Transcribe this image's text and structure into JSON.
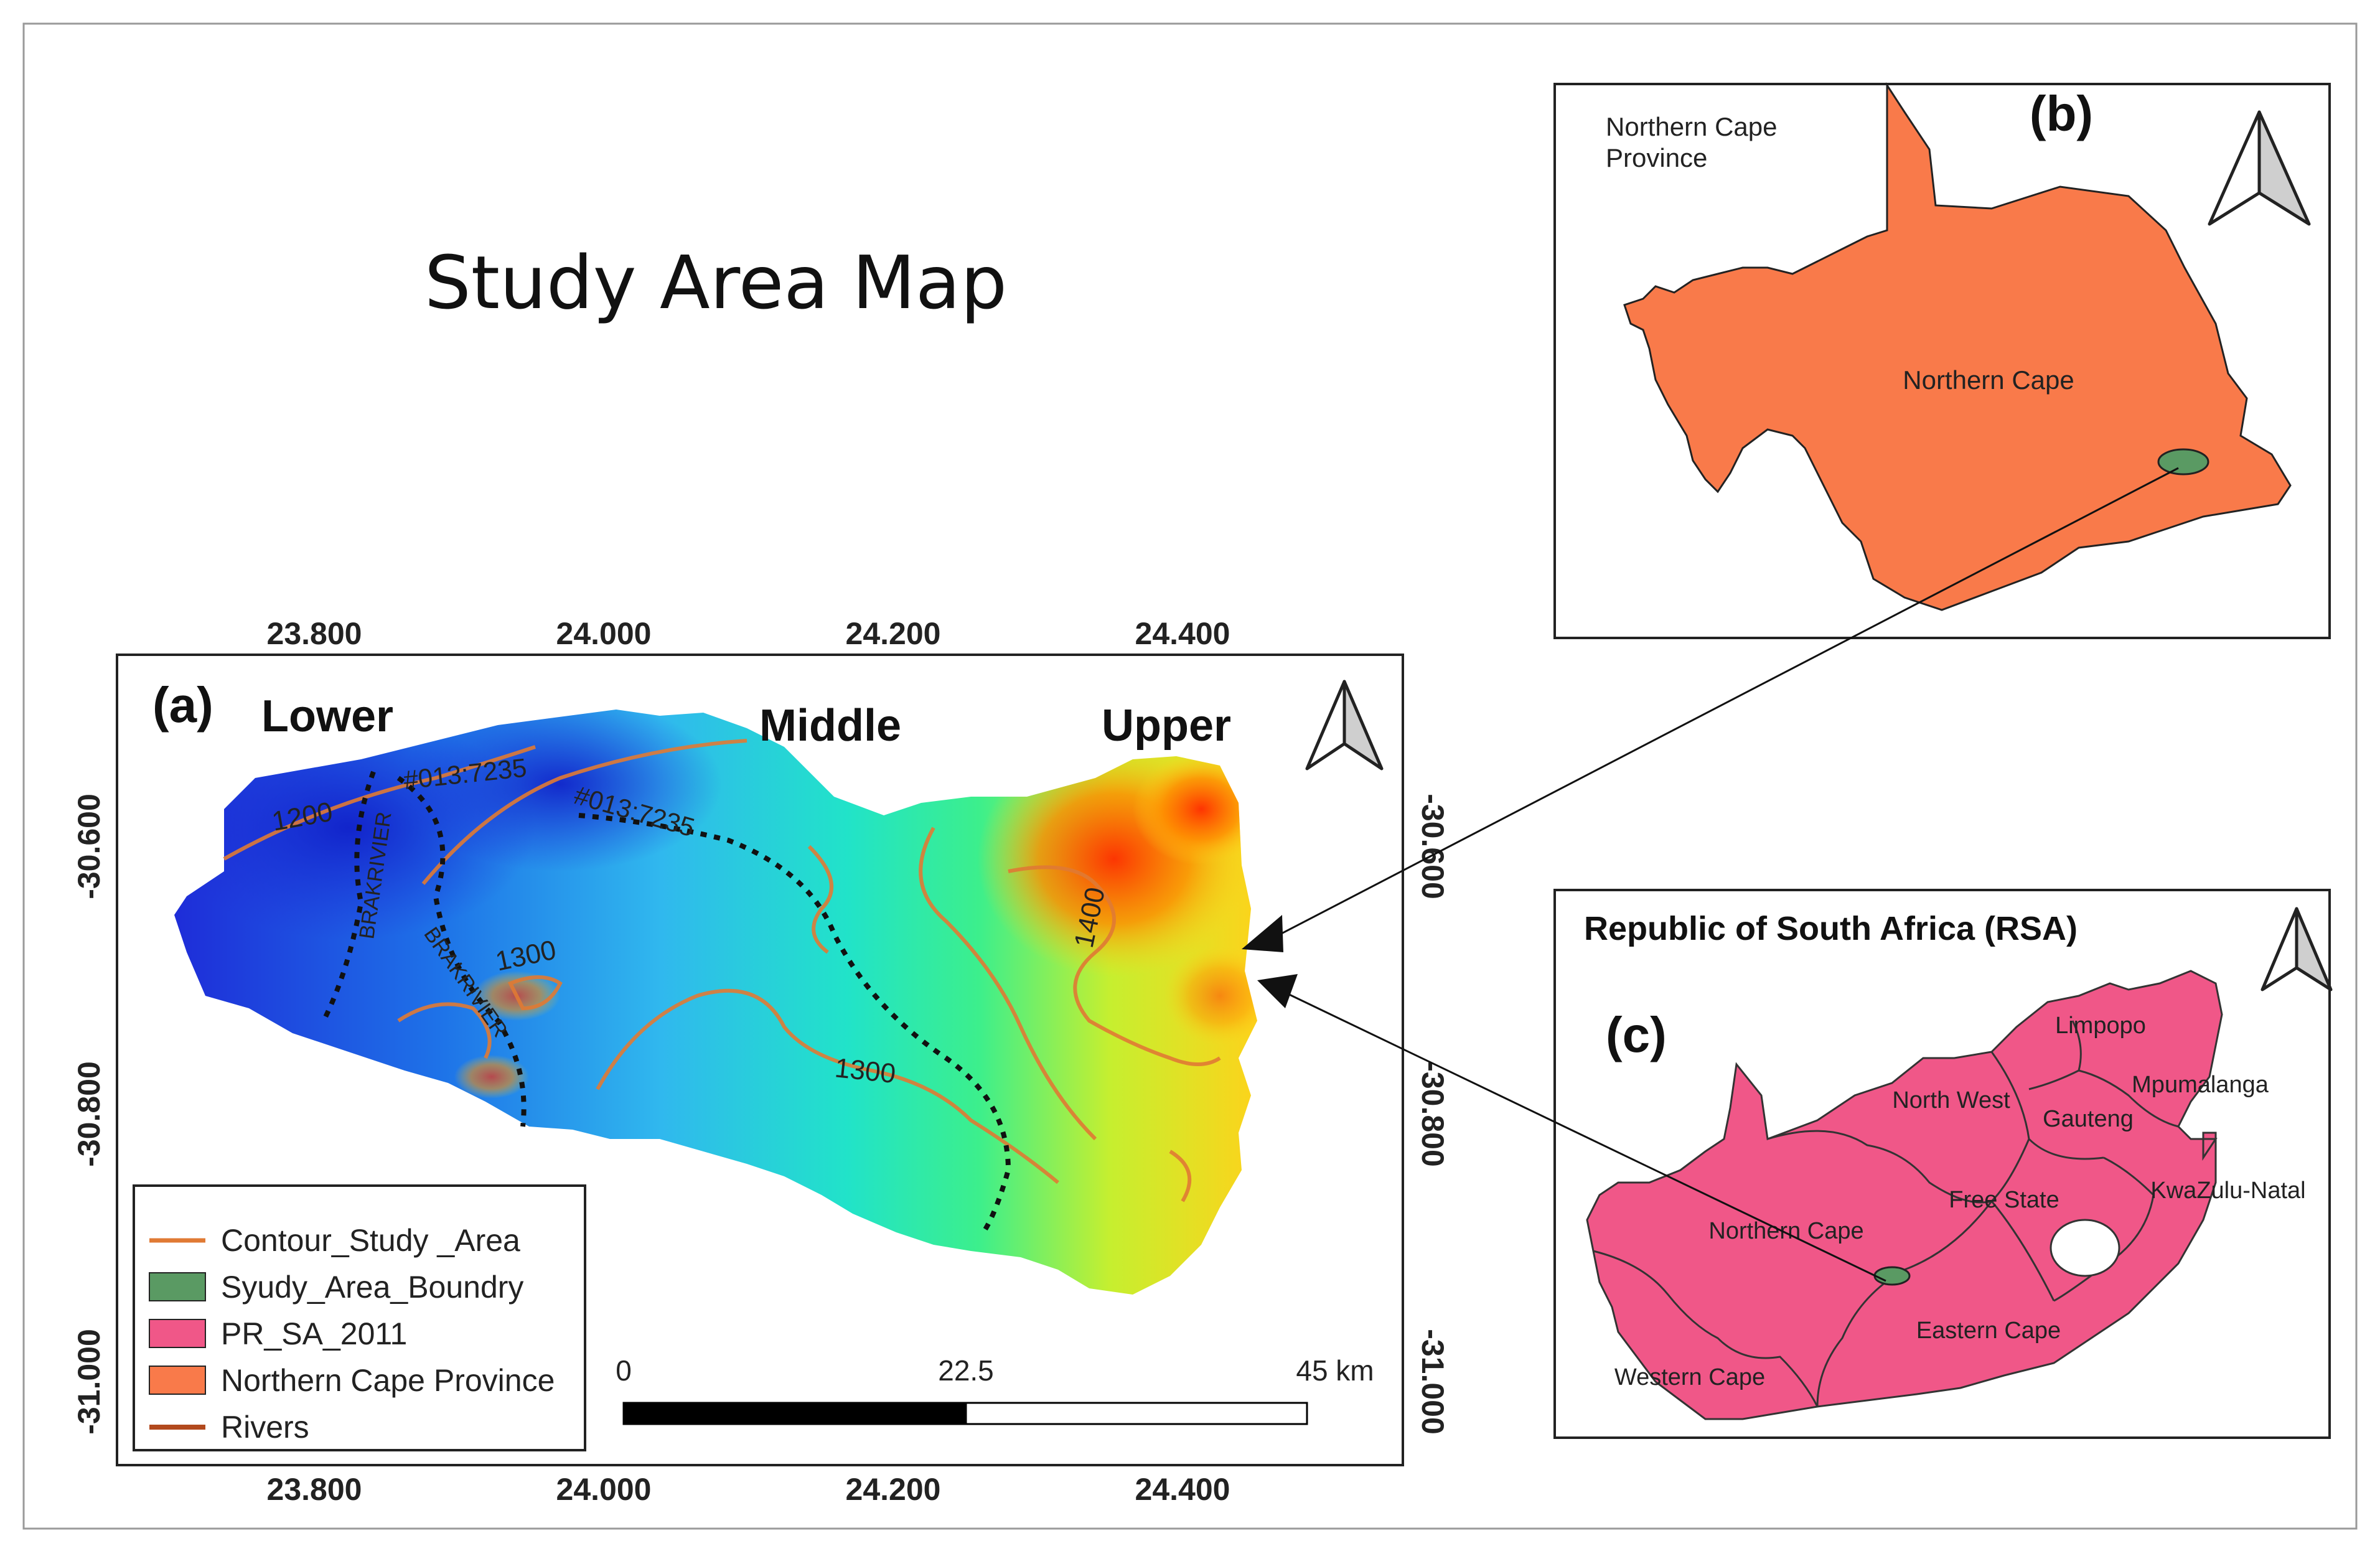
{
  "title": "Study Area Map",
  "panel_a": {
    "label": "(a)",
    "segments": [
      "Lower",
      "Middle",
      "Upper"
    ],
    "x_ticks": [
      "23.800",
      "24.000",
      "24.200",
      "24.400"
    ],
    "y_ticks": [
      "-30.600",
      "-30.800",
      "-31.000"
    ],
    "contour_labels": [
      "1200",
      "1300",
      "1300",
      "1400"
    ],
    "river_labels": [
      "BRAKRIVIER",
      "BRAKRIVIER"
    ],
    "division_labels": [
      "#013:7235",
      "#013:7235"
    ],
    "scale_bar": {
      "ticks": [
        "0",
        "22.5",
        "45 km"
      ]
    },
    "legend": [
      {
        "label": "Contour_Study _Area",
        "symbol": "line",
        "color": "#e07a34"
      },
      {
        "label": "Syudy_Area_Boundry",
        "symbol": "patch",
        "color": "#5a9a63"
      },
      {
        "label": "PR_SA_2011",
        "symbol": "patch",
        "color": "#f05788"
      },
      {
        "label": "Northern Cape Province",
        "symbol": "patch",
        "color": "#f97a4a"
      },
      {
        "label": "Rivers",
        "symbol": "line",
        "color": "#b2491d"
      }
    ]
  },
  "panel_b": {
    "label": "(b)",
    "caption": [
      "Northern Cape",
      "Province"
    ],
    "region_label": "Northern Cape",
    "fill_color": "#f97a4a"
  },
  "panel_c": {
    "label": "(c)",
    "caption": "Republic of South Africa (RSA)",
    "provinces": [
      "Limpopo",
      "North West",
      "Mpumalanga",
      "Gauteng",
      "Free State",
      "KwaZulu-Natal",
      "Northern Cape",
      "Eastern Cape",
      "Western Cape"
    ],
    "fill_color": "#f05788"
  },
  "colors": {
    "study_area_green": "#5a9a63",
    "contour_orange": "#e07a34",
    "frame": "#222222"
  },
  "icons": [
    "north-arrow-icon",
    "north-arrow-icon",
    "north-arrow-icon",
    "arrowhead-icon",
    "arrowhead-icon"
  ]
}
